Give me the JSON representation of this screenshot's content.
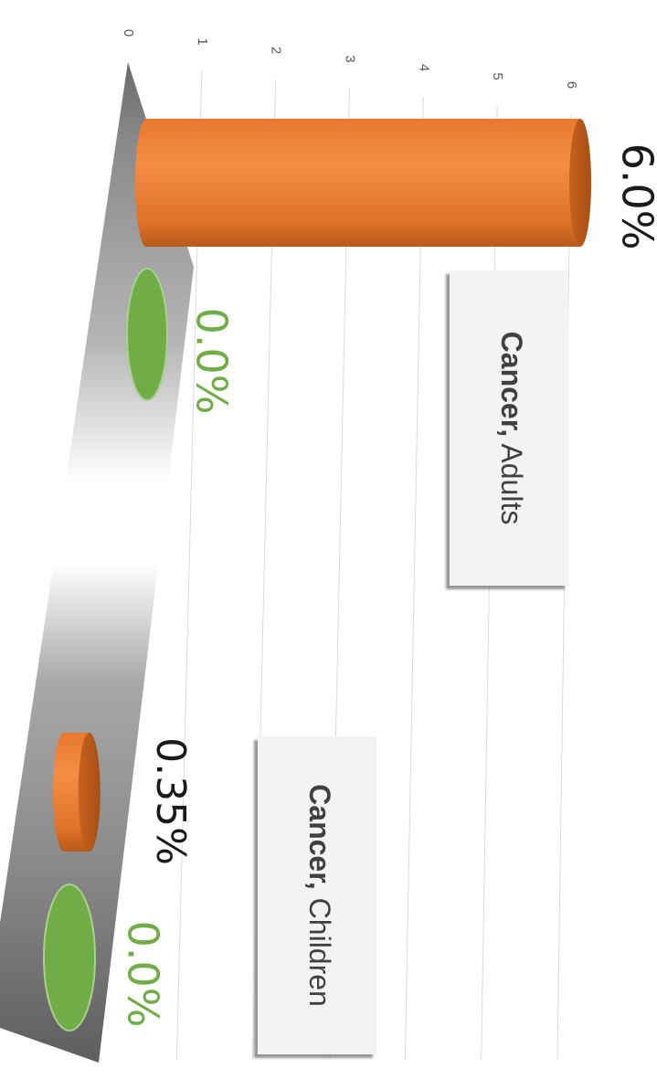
{
  "chart_data": {
    "type": "bar",
    "orientation": "rotated-90-clockwise",
    "value_axis": {
      "ylim": [
        0,
        6
      ],
      "ticks": [
        "0",
        "1",
        "2",
        "3",
        "4",
        "5",
        "6"
      ]
    },
    "grid": true,
    "categories": [
      {
        "bold": "Cancer,",
        "rest": " Adults"
      },
      {
        "bold": "Cancer,",
        "rest": " Children"
      }
    ],
    "series": [
      {
        "color": "#ED7D31",
        "values": [
          6.0,
          0.35
        ],
        "labels": [
          "6.0%",
          "0.35%"
        ]
      },
      {
        "color": "#70AD47",
        "values": [
          0.0,
          0.0
        ],
        "labels": [
          "0.0%",
          "0.0%"
        ]
      }
    ]
  }
}
